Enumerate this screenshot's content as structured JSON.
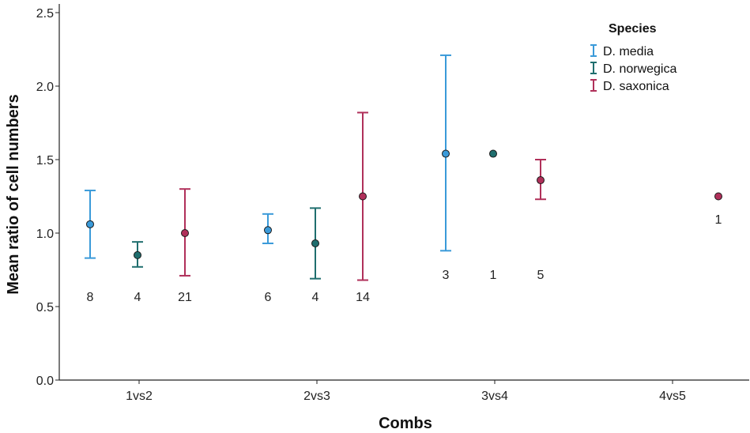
{
  "chart_data": {
    "type": "errorbar",
    "xlabel": "Combs",
    "ylabel": "Mean ratio of cell numbers",
    "ylim": [
      0,
      2.5
    ],
    "yticks": [
      0.0,
      0.5,
      1.0,
      1.5,
      2.0,
      2.5
    ],
    "ytick_labels": [
      "0.0",
      "0.5",
      "1.0",
      "1.5",
      "2.0",
      "2.5"
    ],
    "categories": [
      "1vs2",
      "2vs3",
      "3vs4",
      "4vs5"
    ],
    "legend": {
      "title": "Species",
      "position": "top-right"
    },
    "series": [
      {
        "name": "D. media",
        "color": "#3a9ad9",
        "points": [
          {
            "category": "1vs2",
            "mean": 1.06,
            "lower": 0.83,
            "upper": 1.29,
            "n": "8"
          },
          {
            "category": "2vs3",
            "mean": 1.02,
            "lower": 0.93,
            "upper": 1.13,
            "n": "6"
          },
          {
            "category": "3vs4",
            "mean": 1.54,
            "lower": 0.88,
            "upper": 2.21,
            "n": "3"
          }
        ]
      },
      {
        "name": "D. norwegica",
        "color": "#1f6e6e",
        "points": [
          {
            "category": "1vs2",
            "mean": 0.85,
            "lower": 0.77,
            "upper": 0.94,
            "n": "4"
          },
          {
            "category": "2vs3",
            "mean": 0.93,
            "lower": 0.69,
            "upper": 1.17,
            "n": "4"
          },
          {
            "category": "3vs4",
            "mean": 1.54,
            "lower": null,
            "upper": null,
            "n": "1"
          }
        ]
      },
      {
        "name": "D. saxonica",
        "color": "#b0305a",
        "points": [
          {
            "category": "1vs2",
            "mean": 1.0,
            "lower": 0.71,
            "upper": 1.3,
            "n": "21"
          },
          {
            "category": "2vs3",
            "mean": 1.25,
            "lower": 0.68,
            "upper": 1.82,
            "n": "14"
          },
          {
            "category": "3vs4",
            "mean": 1.36,
            "lower": 1.23,
            "upper": 1.5,
            "n": "5"
          },
          {
            "category": "4vs5",
            "mean": 1.25,
            "lower": null,
            "upper": null,
            "n": "1"
          }
        ]
      }
    ]
  }
}
